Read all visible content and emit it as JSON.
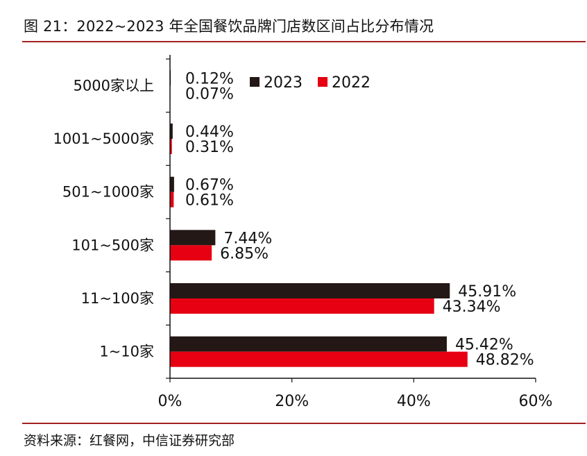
{
  "title": "图 21：2022~2023 年全国餐饮品牌门店数区间占比分布情况",
  "source": "资料来源：红餐网，中信证券研究部",
  "chart_data": {
    "type": "bar",
    "orientation": "horizontal",
    "categories": [
      "5000家以上",
      "1001~5000家",
      "501~1000家",
      "101~500家",
      "11~100家",
      "1~10家"
    ],
    "series": [
      {
        "name": "2023",
        "color": "#231815",
        "values": [
          0.12,
          0.44,
          0.67,
          7.44,
          45.91,
          45.42
        ],
        "labels": [
          "0.12%",
          "0.44%",
          "0.67%",
          "7.44%",
          "45.91%",
          "45.42%"
        ]
      },
      {
        "name": "2022",
        "color": "#e60012",
        "values": [
          0.07,
          0.31,
          0.61,
          6.85,
          43.34,
          48.82
        ],
        "labels": [
          "0.07%",
          "0.31%",
          "0.61%",
          "6.85%",
          "43.34%",
          "48.82%"
        ]
      }
    ],
    "xlim": [
      0,
      60
    ],
    "xticks": [
      "0%",
      "20%",
      "40%",
      "60%"
    ],
    "legend_position": "top",
    "grid": false
  }
}
